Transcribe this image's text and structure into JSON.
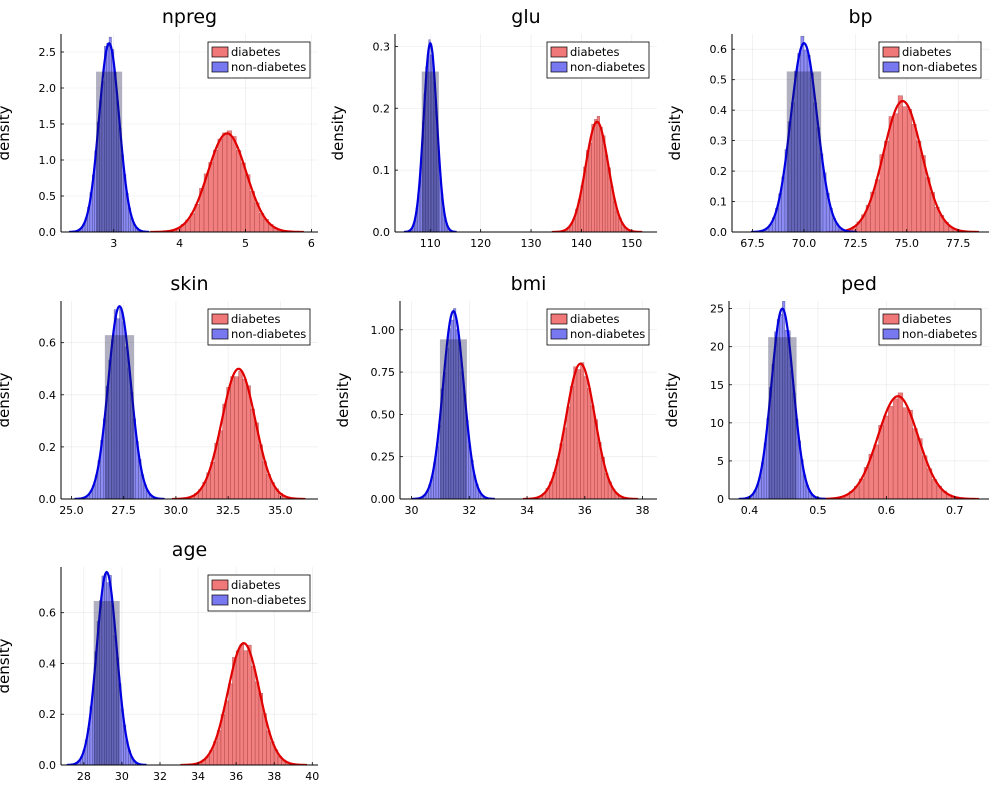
{
  "figure": {
    "ylabel": "density"
  },
  "colors": {
    "diabetes_fill": "#f07878",
    "diabetes_line": "#e00000",
    "nondiabetes_fill": "#7878f0",
    "nondiabetes_line": "#0000e0",
    "overlap": "#1c1c4a"
  },
  "legend": {
    "diabetes": "diabetes",
    "nondiabetes": "non-diabetes"
  },
  "chart_data": [
    {
      "type": "histogram-density",
      "title": "npreg",
      "xlim": [
        2.2,
        6.1
      ],
      "ylim": [
        0,
        2.75
      ],
      "xticks": [
        3,
        4,
        5,
        6
      ],
      "xtick_labels": [
        "3",
        "4",
        "5",
        "6"
      ],
      "yticks": [
        0,
        0.5,
        1.0,
        1.5,
        2.0,
        2.5
      ],
      "ytick_labels": [
        "0.0",
        "0.5",
        "1.0",
        "1.5",
        "2.0",
        "2.5"
      ],
      "series": [
        {
          "name": "diabetes",
          "mean": 4.72,
          "peak": 1.37
        },
        {
          "name": "non-diabetes",
          "mean": 2.93,
          "peak": 2.62
        }
      ]
    },
    {
      "type": "histogram-density",
      "title": "glu",
      "xlim": [
        103,
        155
      ],
      "ylim": [
        0,
        0.32
      ],
      "xticks": [
        110,
        120,
        130,
        140,
        150
      ],
      "xtick_labels": [
        "110",
        "120",
        "130",
        "140",
        "150"
      ],
      "yticks": [
        0,
        0.1,
        0.2,
        0.3
      ],
      "ytick_labels": [
        "0.0",
        "0.1",
        "0.2",
        "0.3"
      ],
      "series": [
        {
          "name": "diabetes",
          "mean": 143.1,
          "peak": 0.178
        },
        {
          "name": "non-diabetes",
          "mean": 110.0,
          "peak": 0.305
        }
      ]
    },
    {
      "type": "histogram-density",
      "title": "bp",
      "xlim": [
        66.5,
        79.0
      ],
      "ylim": [
        0,
        0.65
      ],
      "xticks": [
        67.5,
        70.0,
        72.5,
        75.0,
        77.5
      ],
      "xtick_labels": [
        "67.5",
        "70.0",
        "72.5",
        "75.0",
        "77.5"
      ],
      "yticks": [
        0,
        0.1,
        0.2,
        0.3,
        0.4,
        0.5,
        0.6
      ],
      "ytick_labels": [
        "0.0",
        "0.1",
        "0.2",
        "0.3",
        "0.4",
        "0.5",
        "0.6"
      ],
      "series": [
        {
          "name": "diabetes",
          "mean": 74.8,
          "peak": 0.43
        },
        {
          "name": "non-diabetes",
          "mean": 70.0,
          "peak": 0.62
        }
      ]
    },
    {
      "type": "histogram-density",
      "title": "skin",
      "xlim": [
        24.5,
        36.8
      ],
      "ylim": [
        0,
        0.76
      ],
      "xticks": [
        25.0,
        27.5,
        30.0,
        32.5,
        35.0
      ],
      "xtick_labels": [
        "25.0",
        "27.5",
        "30.0",
        "32.5",
        "35.0"
      ],
      "yticks": [
        0,
        0.2,
        0.4,
        0.6
      ],
      "ytick_labels": [
        "0.0",
        "0.2",
        "0.4",
        "0.6"
      ],
      "series": [
        {
          "name": "diabetes",
          "mean": 33.0,
          "peak": 0.5
        },
        {
          "name": "non-diabetes",
          "mean": 27.3,
          "peak": 0.74
        }
      ]
    },
    {
      "type": "histogram-density",
      "title": "bmi",
      "xlim": [
        29.6,
        38.5
      ],
      "ylim": [
        0,
        1.17
      ],
      "xticks": [
        30,
        32,
        34,
        36,
        38
      ],
      "xtick_labels": [
        "30",
        "32",
        "34",
        "36",
        "38"
      ],
      "yticks": [
        0,
        0.25,
        0.5,
        0.75,
        1.0
      ],
      "ytick_labels": [
        "0.00",
        "0.25",
        "0.50",
        "0.75",
        "1.00"
      ],
      "series": [
        {
          "name": "diabetes",
          "mean": 35.85,
          "peak": 0.8
        },
        {
          "name": "non-diabetes",
          "mean": 31.45,
          "peak": 1.11
        }
      ]
    },
    {
      "type": "histogram-density",
      "title": "ped",
      "xlim": [
        0.37,
        0.75
      ],
      "ylim": [
        0,
        26
      ],
      "xticks": [
        0.4,
        0.5,
        0.6,
        0.7
      ],
      "xtick_labels": [
        "0.4",
        "0.5",
        "0.6",
        "0.7"
      ],
      "yticks": [
        0,
        5,
        10,
        15,
        20,
        25
      ],
      "ytick_labels": [
        "0",
        "5",
        "10",
        "15",
        "20",
        "25"
      ],
      "series": [
        {
          "name": "diabetes",
          "mean": 0.617,
          "peak": 13.5
        },
        {
          "name": "non-diabetes",
          "mean": 0.448,
          "peak": 25.0
        }
      ]
    },
    {
      "type": "histogram-density",
      "title": "age",
      "xlim": [
        26.8,
        40.3
      ],
      "ylim": [
        0,
        0.78
      ],
      "xticks": [
        28,
        30,
        32,
        34,
        36,
        38,
        40
      ],
      "xtick_labels": [
        "28",
        "30",
        "32",
        "34",
        "36",
        "38",
        "40"
      ],
      "yticks": [
        0,
        0.2,
        0.4,
        0.6
      ],
      "ytick_labels": [
        "0.0",
        "0.2",
        "0.4",
        "0.6"
      ],
      "series": [
        {
          "name": "diabetes",
          "mean": 36.4,
          "peak": 0.48
        },
        {
          "name": "non-diabetes",
          "mean": 29.2,
          "peak": 0.76
        }
      ]
    }
  ]
}
